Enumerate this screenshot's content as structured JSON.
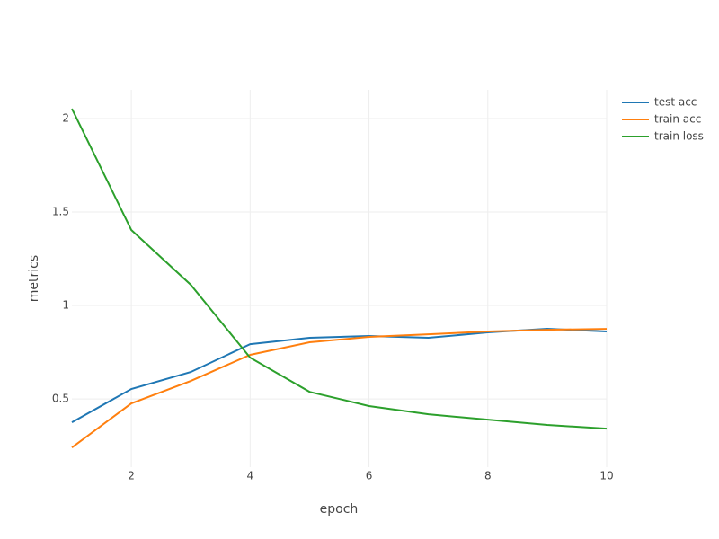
{
  "chart_data": {
    "type": "line",
    "x_label": "epoch",
    "y_label": "metrics",
    "x": [
      1,
      2,
      3,
      4,
      5,
      6,
      7,
      8,
      9,
      10
    ],
    "series": [
      {
        "name": "test acc",
        "color": "#1f77b4",
        "values": [
          0.375,
          0.553,
          0.644,
          0.793,
          0.827,
          0.837,
          0.827,
          0.856,
          0.875,
          0.861
        ]
      },
      {
        "name": "train acc",
        "color": "#ff7f0e",
        "values": [
          0.24,
          0.476,
          0.596,
          0.736,
          0.803,
          0.832,
          0.846,
          0.861,
          0.87,
          0.875
        ]
      },
      {
        "name": "train loss",
        "color": "#2ca02c",
        "values": [
          2.053,
          1.404,
          1.111,
          0.721,
          0.538,
          0.462,
          0.418,
          0.389,
          0.361,
          0.341
        ]
      }
    ],
    "xlim": [
      1,
      10
    ],
    "xticks": [
      2,
      4,
      6,
      8,
      10
    ],
    "ylim": [
      0.135,
      2.154
    ],
    "yticks": [
      0.5,
      1,
      1.5,
      2
    ],
    "grid": true,
    "legend": "top-right"
  }
}
